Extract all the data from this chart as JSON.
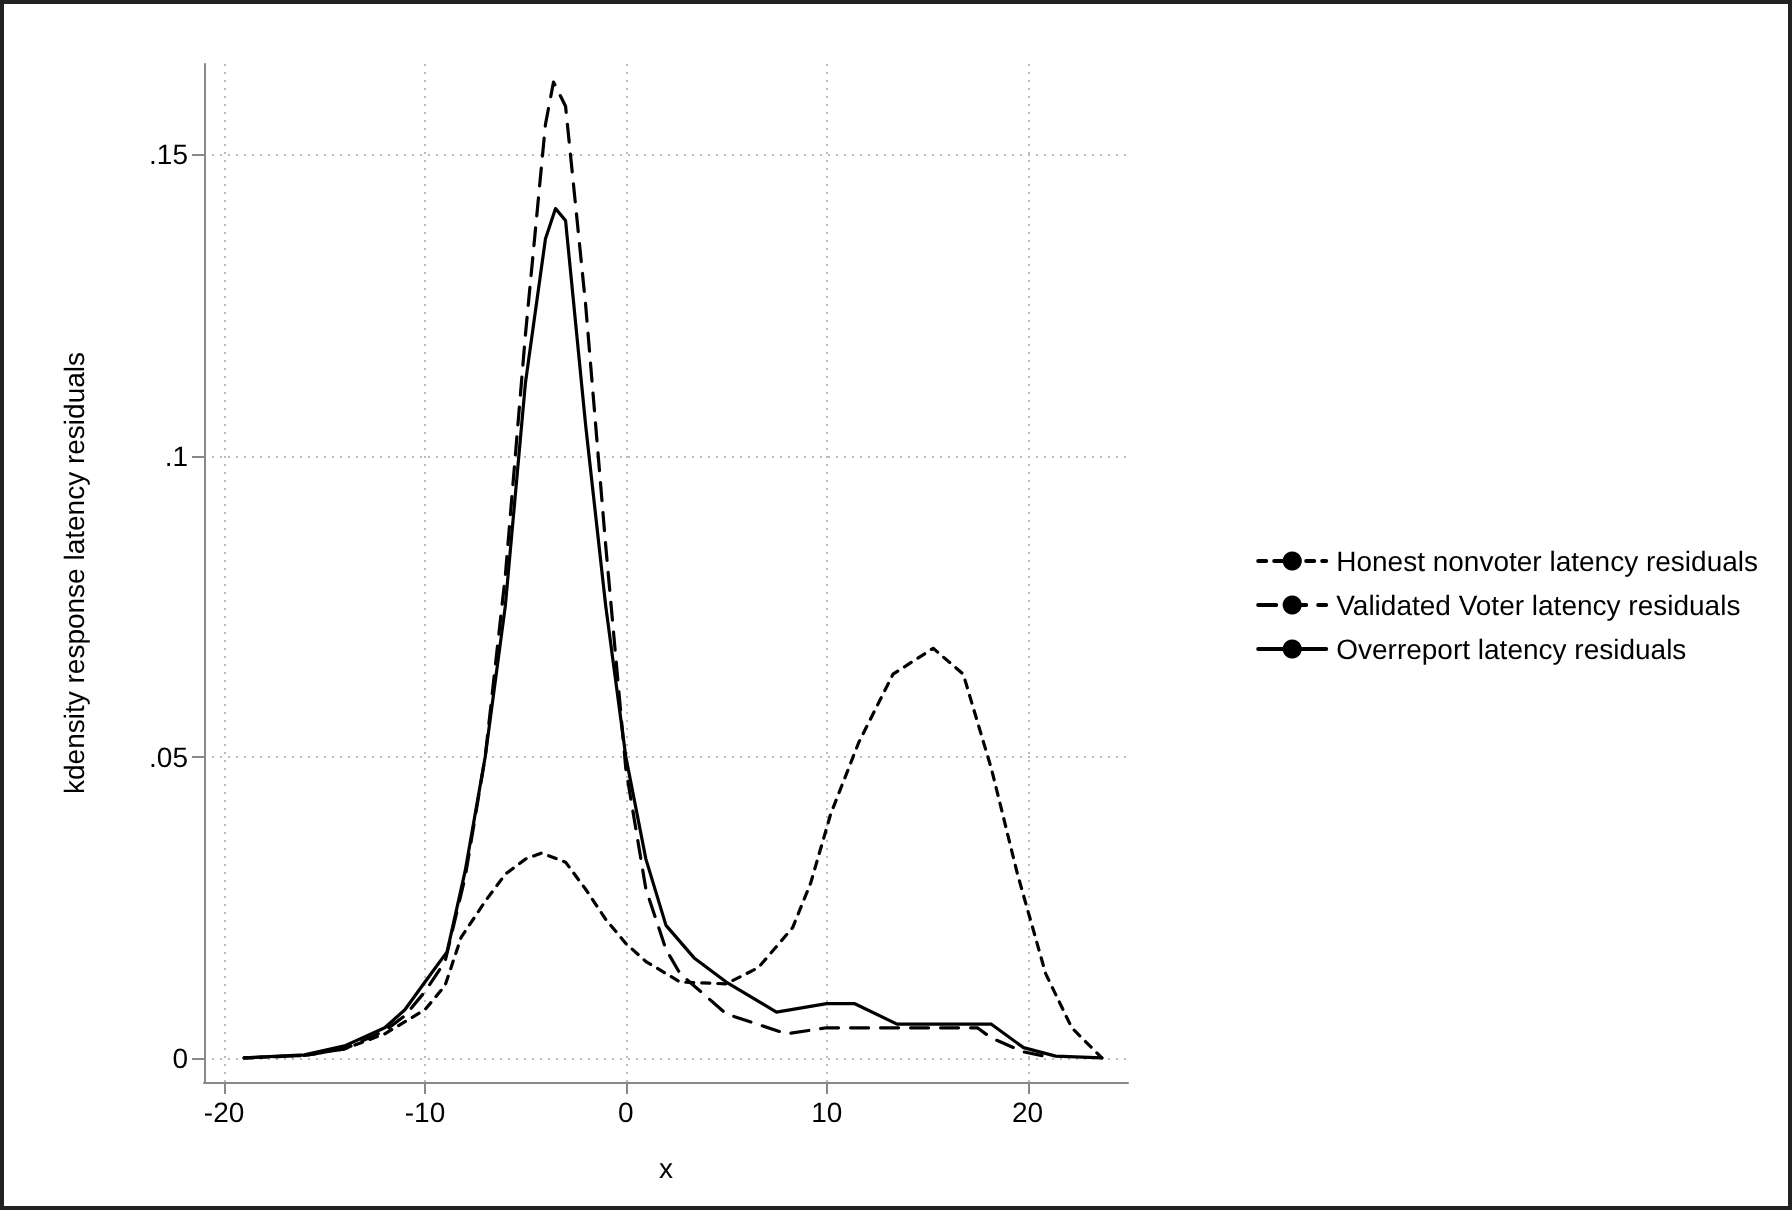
{
  "chart_data": {
    "type": "line",
    "xlabel": "x",
    "ylabel": "kdensity response latency residuals",
    "xlim": [
      -21,
      25
    ],
    "xticks": [
      -20,
      -10,
      0,
      10,
      20
    ],
    "ylim": [
      -0.004,
      0.165
    ],
    "yticks": [
      {
        "value": 0,
        "label": "0"
      },
      {
        "value": 0.05,
        "label": ".05"
      },
      {
        "value": 0.1,
        "label": ".1"
      },
      {
        "value": 0.15,
        "label": ".15"
      }
    ],
    "grid": true,
    "legend": "right",
    "marker": "none",
    "series": [
      {
        "name": "Honest nonvoter latency residuals",
        "color": "#000000",
        "line_style": "dotted",
        "x": [
          -19,
          -16,
          -14,
          -12,
          -10,
          -9,
          -8.2,
          -7,
          -6,
          -5,
          -4.2,
          -3,
          -2,
          -1,
          0,
          1,
          2,
          2.7,
          5,
          6.6,
          8.3,
          9.2,
          10.2,
          11.6,
          13.3,
          15.3,
          16.8,
          18.2,
          19.5,
          20.9,
          22.2,
          23.7
        ],
        "values": [
          0,
          0.0004,
          0.0015,
          0.004,
          0.008,
          0.012,
          0.02,
          0.026,
          0.0305,
          0.033,
          0.034,
          0.0325,
          0.028,
          0.023,
          0.019,
          0.016,
          0.014,
          0.0126,
          0.0123,
          0.015,
          0.0216,
          0.029,
          0.0405,
          0.0524,
          0.0637,
          0.068,
          0.0637,
          0.048,
          0.0305,
          0.014,
          0.005,
          0
        ]
      },
      {
        "name": "Validated Voter latency residuals",
        "color": "#000000",
        "line_style": "dashed",
        "x": [
          -19,
          -16,
          -14,
          -12,
          -11,
          -10,
          -9,
          -8,
          -7,
          -6,
          -5,
          -4,
          -3.6,
          -3,
          -2,
          -1,
          0,
          1,
          2,
          2.7,
          5,
          8,
          10,
          13.5,
          17.5,
          18.2,
          19.8,
          21
        ],
        "values": [
          0,
          0.0004,
          0.0015,
          0.0045,
          0.007,
          0.011,
          0.016,
          0.03,
          0.05,
          0.08,
          0.12,
          0.155,
          0.162,
          0.158,
          0.125,
          0.085,
          0.048,
          0.028,
          0.018,
          0.014,
          0.0073,
          0.004,
          0.005,
          0.005,
          0.005,
          0.0033,
          0.001,
          0.0002
        ]
      },
      {
        "name": "Overreport latency residuals",
        "color": "#000000",
        "line_style": "solid",
        "x": [
          -19,
          -16,
          -14,
          -12,
          -11,
          -10,
          -8.9,
          -8,
          -7,
          -6,
          -5,
          -4,
          -3.5,
          -3,
          -2,
          -1,
          0,
          1,
          2,
          3.4,
          5,
          7.5,
          10,
          11.4,
          13.5,
          18.2,
          19.8,
          21.4,
          23.7
        ],
        "values": [
          0,
          0.0005,
          0.002,
          0.005,
          0.008,
          0.0126,
          0.0176,
          0.031,
          0.05,
          0.075,
          0.112,
          0.136,
          0.141,
          0.139,
          0.105,
          0.075,
          0.05,
          0.033,
          0.022,
          0.0166,
          0.0126,
          0.0076,
          0.009,
          0.009,
          0.0056,
          0.0056,
          0.0017,
          0.0003,
          0
        ]
      }
    ]
  }
}
